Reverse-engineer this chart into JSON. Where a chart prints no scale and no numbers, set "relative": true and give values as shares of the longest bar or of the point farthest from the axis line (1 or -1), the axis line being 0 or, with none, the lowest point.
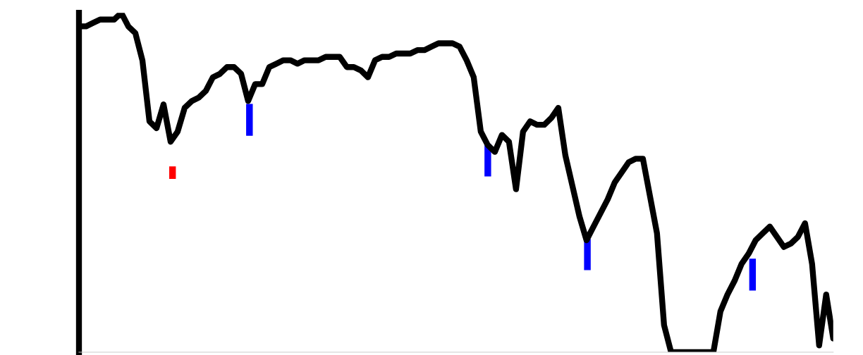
{
  "chart_data": {
    "type": "line",
    "relative": true,
    "tick_labels": false,
    "grid": false,
    "legend": false,
    "categories": [
      null,
      null,
      null,
      null,
      null,
      null,
      null,
      null,
      null,
      null,
      null,
      null,
      null,
      null,
      null,
      null,
      null,
      null,
      null,
      null,
      null,
      null,
      null,
      null,
      null,
      null,
      null,
      null,
      null,
      null,
      null,
      null,
      null,
      null,
      null,
      null,
      null,
      null,
      null,
      null,
      null,
      null,
      null,
      null,
      null,
      null,
      null,
      null,
      null,
      null,
      null,
      null,
      null,
      null,
      null,
      null,
      null,
      null,
      null,
      null,
      null,
      null,
      null,
      null,
      null,
      null,
      null,
      null,
      null,
      null,
      null,
      null,
      null,
      null,
      null,
      null,
      null,
      null,
      null,
      null,
      null,
      null,
      null,
      null,
      null,
      null,
      null,
      null,
      null,
      null,
      null,
      null,
      null,
      null,
      null,
      null,
      null,
      null,
      null,
      null,
      null,
      null,
      null,
      null,
      null,
      null,
      null,
      null
    ],
    "series": [
      {
        "color": "#000000",
        "values": [
          0.96,
          0.96,
          0.97,
          0.98,
          0.98,
          0.98,
          1.0,
          0.96,
          0.94,
          0.86,
          0.68,
          0.66,
          0.73,
          0.62,
          0.65,
          0.72,
          0.74,
          0.75,
          0.77,
          0.81,
          0.82,
          0.84,
          0.84,
          0.82,
          0.74,
          0.79,
          0.79,
          0.84,
          0.85,
          0.86,
          0.86,
          0.85,
          0.86,
          0.86,
          0.86,
          0.87,
          0.87,
          0.87,
          0.84,
          0.84,
          0.83,
          0.81,
          0.86,
          0.87,
          0.87,
          0.88,
          0.88,
          0.88,
          0.89,
          0.89,
          0.9,
          0.91,
          0.91,
          0.91,
          0.9,
          0.86,
          0.81,
          0.65,
          0.61,
          0.59,
          0.64,
          0.62,
          0.48,
          0.65,
          0.68,
          0.67,
          0.67,
          0.69,
          0.72,
          0.58,
          0.49,
          0.4,
          0.33,
          0.37,
          0.41,
          0.45,
          0.5,
          0.53,
          0.56,
          0.57,
          0.57,
          0.46,
          0.35,
          0.08,
          0.0,
          0.0,
          0.0,
          0.0,
          0.0,
          0.0,
          0.0,
          0.12,
          0.17,
          0.21,
          0.26,
          0.29,
          0.33,
          0.35,
          0.37,
          0.34,
          0.31,
          0.32,
          0.34,
          0.38,
          0.26,
          0.02,
          0.17,
          0.04
        ]
      }
    ]
  }
}
